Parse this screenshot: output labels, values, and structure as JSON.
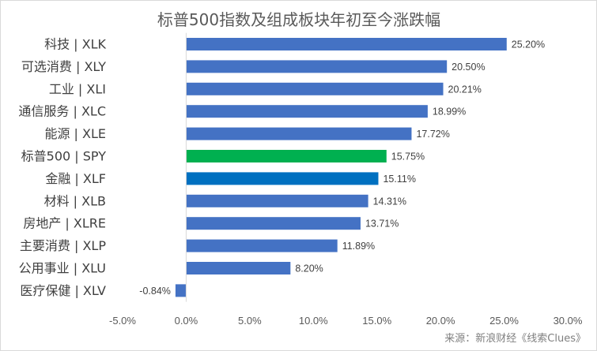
{
  "chart_data": {
    "type": "bar",
    "orientation": "horizontal",
    "title": "标普500指数及组成板块年初至今涨跌幅",
    "xlabel": "",
    "ylabel": "",
    "categories": [
      "科技 | XLK",
      "可选消费 | XLY",
      "工业 | XLI",
      "通信服务 | XLC",
      "能源 | XLE",
      "标普500 | SPY",
      "金融 | XLF",
      "材料 | XLB",
      "房地产 | XLRE",
      "主要消费 | XLP",
      "公用事业 | XLU",
      "医疗保健 | XLV"
    ],
    "values": [
      25.2,
      20.5,
      20.21,
      18.99,
      17.72,
      15.75,
      15.11,
      14.31,
      13.71,
      11.89,
      8.2,
      -0.84
    ],
    "data_labels": [
      "25.20%",
      "20.50%",
      "20.21%",
      "18.99%",
      "17.72%",
      "15.75%",
      "15.11%",
      "14.31%",
      "13.71%",
      "11.89%",
      "8.20%",
      "-0.84%"
    ],
    "bar_colors": [
      "#4472c4",
      "#4472c4",
      "#4472c4",
      "#4472c4",
      "#4472c4",
      "#00b050",
      "#0070c0",
      "#4472c4",
      "#4472c4",
      "#4472c4",
      "#4472c4",
      "#4472c4"
    ],
    "xlim": [
      -5,
      30
    ],
    "xticks": [
      -5,
      0,
      5,
      10,
      15,
      20,
      25,
      30
    ],
    "xtick_labels": [
      "-5.0%",
      "0.0%",
      "5.0%",
      "10.0%",
      "15.0%",
      "20.0%",
      "25.0%",
      "30.0%"
    ],
    "grid": false,
    "legend": "none"
  },
  "source": "来源：新浪财经《线索Clues》"
}
